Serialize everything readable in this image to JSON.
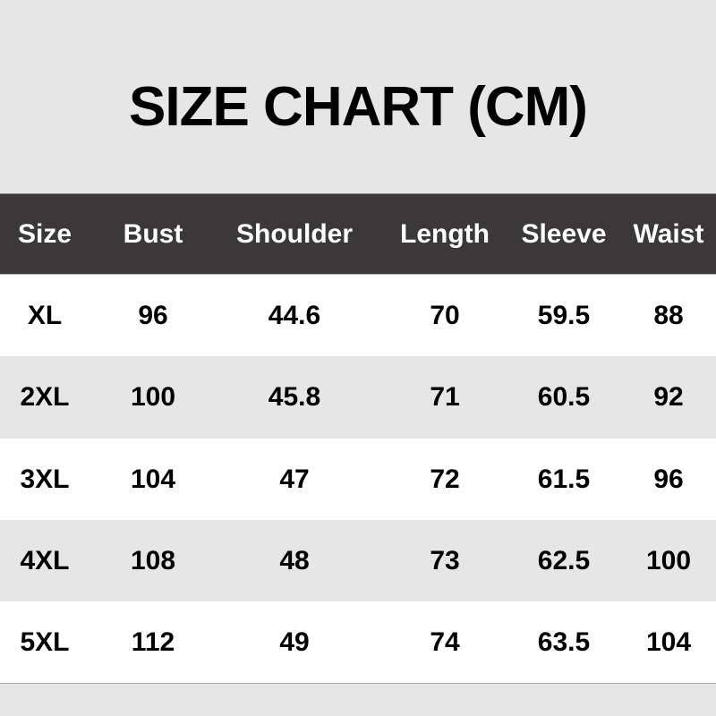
{
  "title": "SIZE CHART (CM)",
  "colors": {
    "header_bg": "#3a3839",
    "header_text": "#ffffff",
    "row_alt": "#e6e6e6",
    "row": "#ffffff"
  },
  "headers": [
    "Size",
    "Bust",
    "Shoulder",
    "Length",
    "Sleeve",
    "Waist"
  ],
  "rows": [
    [
      "XL",
      "96",
      "44.6",
      "70",
      "59.5",
      "88"
    ],
    [
      "2XL",
      "100",
      "45.8",
      "71",
      "60.5",
      "92"
    ],
    [
      "3XL",
      "104",
      "47",
      "72",
      "61.5",
      "96"
    ],
    [
      "4XL",
      "108",
      "48",
      "73",
      "62.5",
      "100"
    ],
    [
      "5XL",
      "112",
      "49",
      "74",
      "63.5",
      "104"
    ]
  ]
}
